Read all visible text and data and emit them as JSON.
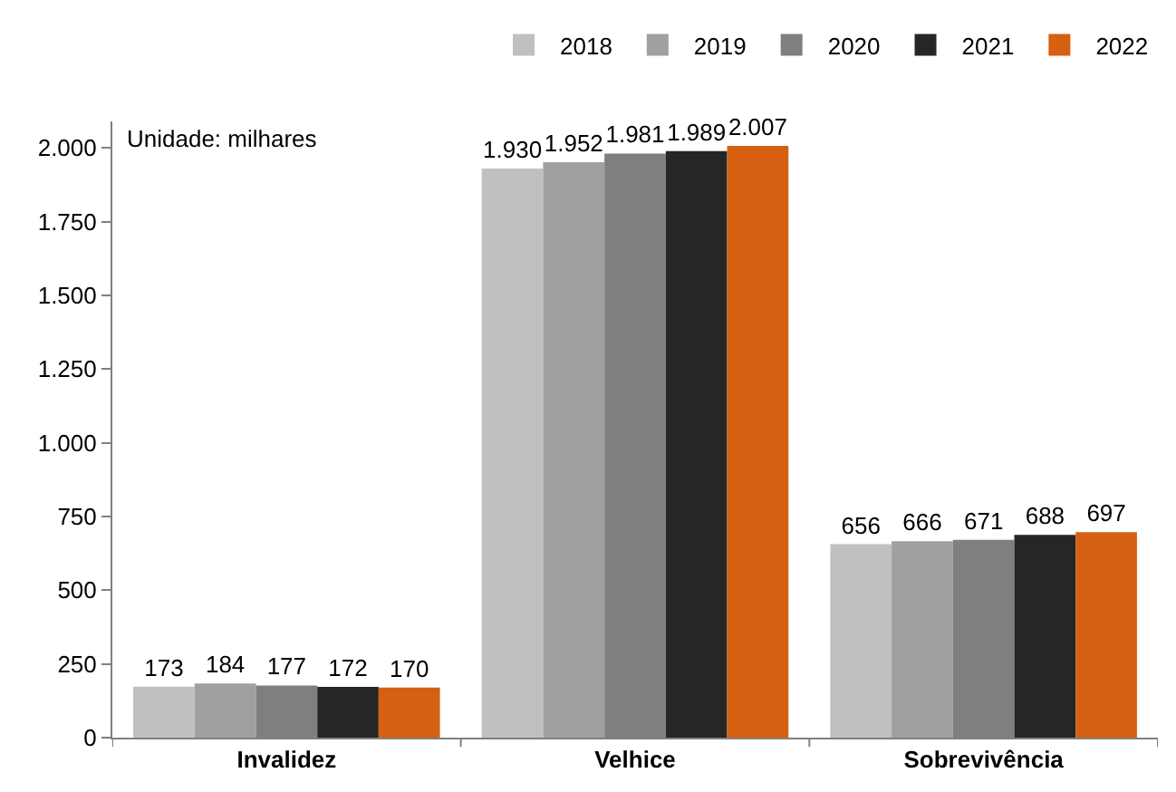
{
  "chart_data": {
    "type": "bar",
    "categories": [
      "Invalidez",
      "Velhice",
      "Sobrevivência"
    ],
    "series": [
      {
        "name": "2018",
        "color": "#c0c0c0",
        "values": [
          173,
          1930,
          656
        ],
        "value_labels": [
          "173",
          "1.930",
          "656"
        ]
      },
      {
        "name": "2019",
        "color": "#a0a0a0",
        "values": [
          184,
          1952,
          666
        ],
        "value_labels": [
          "184",
          "1.952",
          "666"
        ]
      },
      {
        "name": "2020",
        "color": "#7f7f7f",
        "values": [
          177,
          1981,
          671
        ],
        "value_labels": [
          "177",
          "1.981",
          "671"
        ]
      },
      {
        "name": "2021",
        "color": "#262626",
        "values": [
          172,
          1989,
          688
        ],
        "value_labels": [
          "172",
          "1.989",
          "688"
        ]
      },
      {
        "name": "2022",
        "color": "#d66012",
        "values": [
          170,
          2007,
          697
        ],
        "value_labels": [
          "170",
          "2.007",
          "697"
        ]
      }
    ],
    "ylim": [
      0,
      2090
    ],
    "yticks": [
      0,
      250,
      500,
      750,
      {
        "value": 1000,
        "label": "1.000"
      },
      {
        "value": 1250,
        "label": "1.250"
      },
      {
        "value": 1500,
        "label": "1.500"
      },
      {
        "value": 1750,
        "label": "1.750"
      },
      {
        "value": 2000,
        "label": "2.000"
      }
    ],
    "annotations": [
      "Unidade: milhares"
    ],
    "legend": "top right"
  }
}
